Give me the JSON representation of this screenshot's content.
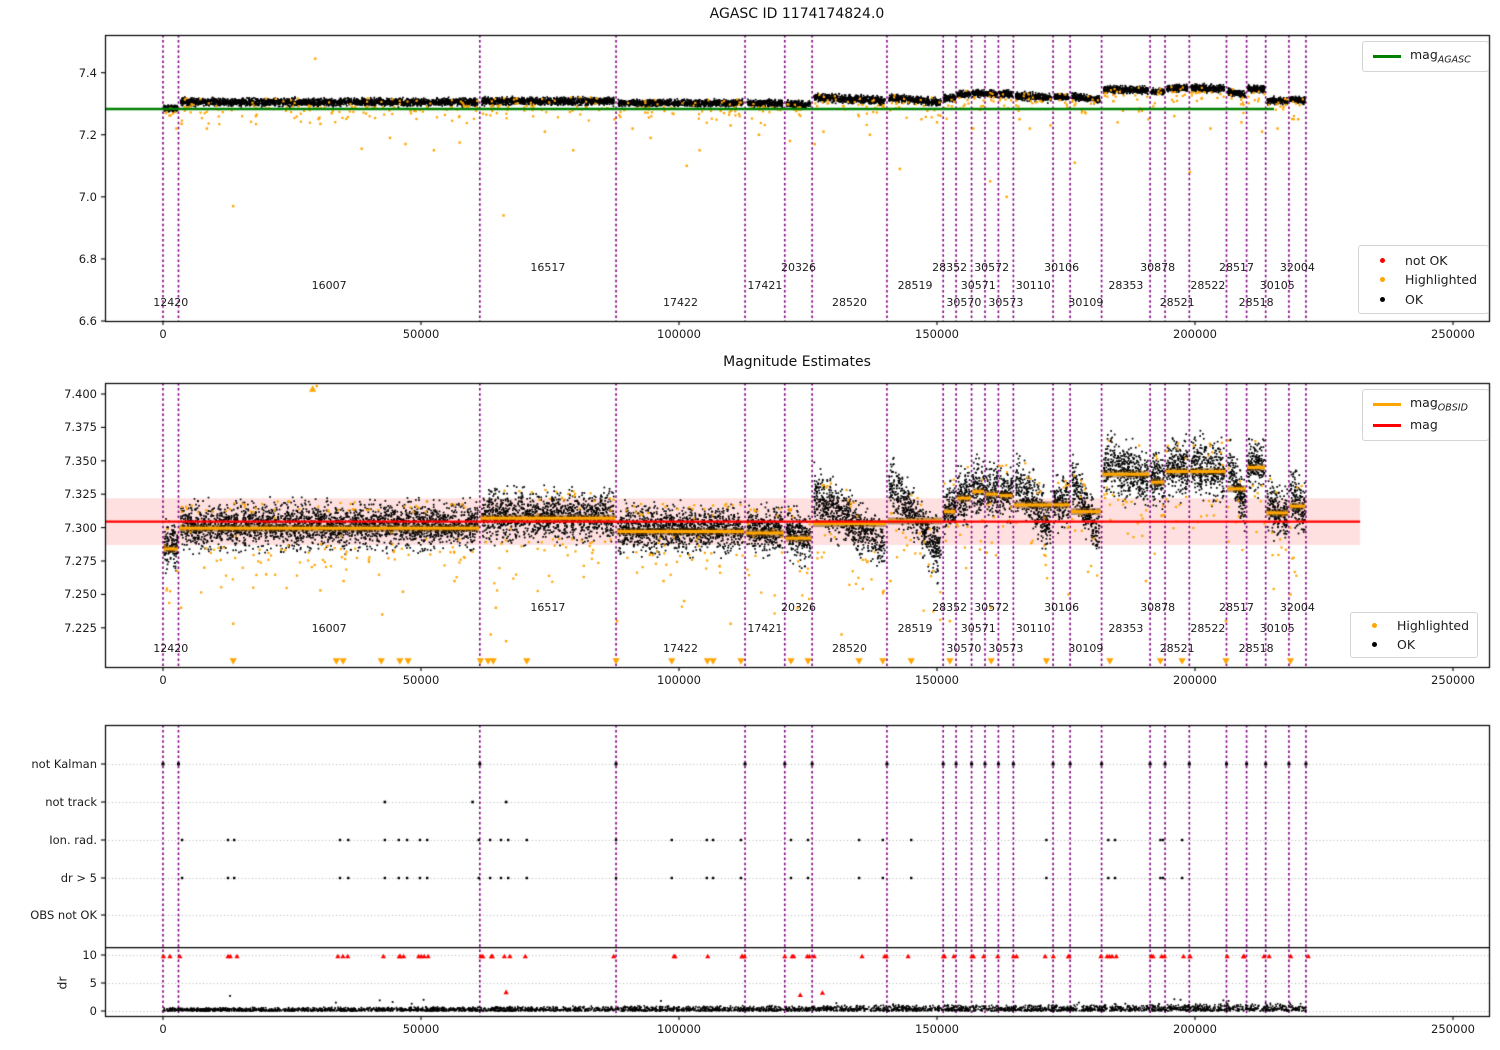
{
  "chart_data": {
    "x_ticks": [
      0,
      50000,
      100000,
      150000,
      200000,
      250000
    ],
    "xlim": [
      -11200,
      257000
    ],
    "boundaries": [
      0,
      3000,
      61400,
      87800,
      112800,
      120500,
      125800,
      140300,
      151200,
      153700,
      156700,
      159300,
      161900,
      164800,
      172500,
      175800,
      181900,
      191300,
      194200,
      198900,
      206100,
      210000,
      213700,
      218200,
      221500
    ],
    "vline_color": "#800080",
    "observations": [
      {
        "obsid": "12420",
        "start": 0,
        "end": 3000,
        "mag_obsid": 7.284,
        "mid_half": 0.016,
        "trend": 0,
        "top_center": 7.284,
        "top_half": 0.01
      },
      {
        "obsid": "16007",
        "start": 3000,
        "end": 61400,
        "mag_obsid": 7.2995,
        "mid_half": 0.0165,
        "trend": 0,
        "top_center": 7.305,
        "top_half": 0.013
      },
      {
        "obsid": "16517",
        "start": 61400,
        "end": 87800,
        "mag_obsid": 7.307,
        "mid_half": 0.0175,
        "trend": 0,
        "top_center": 7.308,
        "top_half": 0.013
      },
      {
        "obsid": "17422",
        "start": 87800,
        "end": 112800,
        "mag_obsid": 7.297,
        "mid_half": 0.017,
        "trend": 0,
        "top_center": 7.302,
        "top_half": 0.012
      },
      {
        "obsid": "17421",
        "start": 112800,
        "end": 120500,
        "mag_obsid": 7.296,
        "mid_half": 0.016,
        "trend": 0,
        "top_center": 7.301,
        "top_half": 0.012
      },
      {
        "obsid": "20326",
        "start": 120500,
        "end": 125800,
        "mag_obsid": 7.292,
        "mid_half": 0.018,
        "trend": -0.008,
        "top_center": 7.298,
        "top_half": 0.012
      },
      {
        "obsid": "28520",
        "start": 125800,
        "end": 140300,
        "mag_obsid": 7.303,
        "mid_half": 0.02,
        "trend": -0.039,
        "top_center": 7.315,
        "top_half": 0.014
      },
      {
        "obsid": "28519",
        "start": 140300,
        "end": 151200,
        "mag_obsid": 7.305,
        "mid_half": 0.02,
        "trend": -0.055,
        "top_center": 7.312,
        "top_half": 0.013
      },
      {
        "obsid": "28352",
        "start": 151200,
        "end": 153700,
        "mag_obsid": 7.312,
        "mid_half": 0.021,
        "trend": 0,
        "top_center": 7.318,
        "top_half": 0.012
      },
      {
        "obsid": "30570",
        "start": 153700,
        "end": 156700,
        "mag_obsid": 7.322,
        "mid_half": 0.02,
        "trend": 0,
        "top_center": 7.33,
        "top_half": 0.012
      },
      {
        "obsid": "30571",
        "start": 156700,
        "end": 159300,
        "mag_obsid": 7.327,
        "mid_half": 0.02,
        "trend": 0,
        "top_center": 7.333,
        "top_half": 0.012
      },
      {
        "obsid": "30572",
        "start": 159300,
        "end": 161900,
        "mag_obsid": 7.325,
        "mid_half": 0.02,
        "trend": 0,
        "top_center": 7.332,
        "top_half": 0.012
      },
      {
        "obsid": "30573",
        "start": 161900,
        "end": 164800,
        "mag_obsid": 7.324,
        "mid_half": 0.02,
        "trend": 0,
        "top_center": 7.331,
        "top_half": 0.012
      },
      {
        "obsid": "30110",
        "start": 164800,
        "end": 172500,
        "mag_obsid": 7.317,
        "mid_half": 0.02,
        "trend": -0.035,
        "top_center": 7.322,
        "top_half": 0.013
      },
      {
        "obsid": "30106",
        "start": 172500,
        "end": 175800,
        "mag_obsid": 7.317,
        "mid_half": 0.018,
        "trend": 0,
        "top_center": 7.322,
        "top_half": 0.012
      },
      {
        "obsid": "30109",
        "start": 175800,
        "end": 181900,
        "mag_obsid": 7.312,
        "mid_half": 0.019,
        "trend": -0.043,
        "top_center": 7.318,
        "top_half": 0.012
      },
      {
        "obsid": "28353",
        "start": 181900,
        "end": 191300,
        "mag_obsid": 7.34,
        "mid_half": 0.021,
        "trend": -0.012,
        "top_center": 7.345,
        "top_half": 0.013
      },
      {
        "obsid": "30878",
        "start": 191300,
        "end": 194200,
        "mag_obsid": 7.334,
        "mid_half": 0.019,
        "trend": 0,
        "top_center": 7.34,
        "top_half": 0.012
      },
      {
        "obsid": "28521",
        "start": 194200,
        "end": 198900,
        "mag_obsid": 7.342,
        "mid_half": 0.02,
        "trend": 0,
        "top_center": 7.35,
        "top_half": 0.012
      },
      {
        "obsid": "28522",
        "start": 198900,
        "end": 206100,
        "mag_obsid": 7.342,
        "mid_half": 0.021,
        "trend": -0.008,
        "top_center": 7.35,
        "top_half": 0.013
      },
      {
        "obsid": "28517",
        "start": 206100,
        "end": 210000,
        "mag_obsid": 7.329,
        "mid_half": 0.018,
        "trend": -0.035,
        "top_center": 7.335,
        "top_half": 0.012
      },
      {
        "obsid": "28518",
        "start": 210000,
        "end": 213700,
        "mag_obsid": 7.345,
        "mid_half": 0.02,
        "trend": 0,
        "top_center": 7.348,
        "top_half": 0.012
      },
      {
        "obsid": "30105",
        "start": 213700,
        "end": 218200,
        "mag_obsid": 7.311,
        "mid_half": 0.019,
        "trend": -0.01,
        "top_center": 7.31,
        "top_half": 0.012
      },
      {
        "obsid": "32004",
        "start": 218200,
        "end": 221500,
        "mag_obsid": 7.316,
        "mid_half": 0.019,
        "trend": -0.015,
        "top_center": 7.312,
        "top_half": 0.012
      }
    ],
    "panel1": {
      "type": "scatter",
      "title": "AGASC ID 1174174824.0",
      "ylim": [
        6.6,
        7.523
      ],
      "y_ticks": [
        7.4,
        7.2,
        7.0,
        6.8,
        6.6
      ],
      "y_tick_decimals": 1,
      "mag_agasc": 7.283,
      "green_color": "#008000",
      "green_line_x": [
        -11200,
        215300
      ],
      "legend_line": {
        "base": "mag",
        "sub": "AGASC"
      },
      "legend_points": [
        {
          "label": "not OK",
          "color": "#ff0000"
        },
        {
          "label": "Highlighted",
          "color": "#ffa500"
        },
        {
          "label": "OK",
          "color": "#000000"
        }
      ],
      "outliers": [
        [
          13600,
          6.97
        ],
        [
          29500,
          7.445
        ],
        [
          66000,
          6.94
        ],
        [
          101500,
          7.1
        ],
        [
          142800,
          7.09
        ],
        [
          160300,
          7.05
        ],
        [
          163500,
          7.0
        ],
        [
          176700,
          7.11
        ],
        [
          199000,
          7.08
        ],
        [
          126300,
          7.17
        ],
        [
          47000,
          7.17
        ],
        [
          44000,
          7.19
        ],
        [
          38500,
          7.155
        ],
        [
          52500,
          7.15
        ],
        [
          57500,
          7.175
        ],
        [
          74000,
          7.21
        ],
        [
          79500,
          7.15
        ],
        [
          94500,
          7.19
        ],
        [
          104000,
          7.15
        ],
        [
          115500,
          7.2
        ],
        [
          121500,
          7.18
        ],
        [
          137000,
          7.2
        ],
        [
          87500,
          7.25
        ],
        [
          91000,
          7.22
        ],
        [
          110000,
          7.23
        ],
        [
          150000,
          7.24
        ],
        [
          168000,
          7.22
        ],
        [
          185000,
          7.24
        ],
        [
          203000,
          7.22
        ],
        [
          213000,
          7.21
        ],
        [
          30500,
          7.235
        ],
        [
          18000,
          7.26
        ],
        [
          8500,
          7.22
        ],
        [
          2600,
          7.22
        ],
        [
          3600,
          7.235
        ],
        [
          128000,
          7.21
        ],
        [
          147000,
          7.25
        ],
        [
          157000,
          7.22
        ],
        [
          166000,
          7.25
        ],
        [
          172000,
          7.23
        ],
        [
          191000,
          7.25
        ],
        [
          196000,
          7.26
        ],
        [
          209000,
          7.24
        ],
        [
          216000,
          7.22
        ],
        [
          220000,
          7.25
        ]
      ]
    },
    "panel2": {
      "type": "scatter",
      "title": "Magnitude Estimates",
      "ylim": [
        7.1956,
        7.4082
      ],
      "y_ticks": [
        7.4,
        7.375,
        7.35,
        7.325,
        7.3,
        7.275,
        7.25,
        7.225
      ],
      "y_tick_decimals": 3,
      "mag": 7.3045,
      "mag_color": "#ff0000",
      "band": [
        7.287,
        7.322
      ],
      "band_color": "rgba(255,0,0,0.12)",
      "red_line_x": [
        -11200,
        232000
      ],
      "obsid_line_color": "#ffa500",
      "legend_lines": [
        {
          "base": "mag",
          "sub": "OBSID",
          "color": "#ffa500"
        },
        {
          "base": "mag",
          "sub": "",
          "color": "#ff0000"
        }
      ],
      "legend_points": [
        {
          "label": "Highlighted",
          "color": "#ffa500"
        },
        {
          "label": "OK",
          "color": "#000000"
        }
      ],
      "outliers": [
        [
          29800,
          7.406
        ],
        [
          3500,
          7.24
        ],
        [
          13600,
          7.228
        ],
        [
          30500,
          7.253
        ],
        [
          42500,
          7.235
        ],
        [
          56500,
          7.26
        ],
        [
          63500,
          7.22
        ],
        [
          64500,
          7.24
        ],
        [
          88000,
          7.23
        ],
        [
          101000,
          7.245
        ],
        [
          110000,
          7.228
        ],
        [
          123000,
          7.24
        ],
        [
          131500,
          7.22
        ],
        [
          141000,
          7.26
        ],
        [
          152500,
          7.23
        ],
        [
          160500,
          7.24
        ],
        [
          175500,
          7.25
        ],
        [
          190500,
          7.26
        ],
        [
          206000,
          7.23
        ],
        [
          218500,
          7.25
        ],
        [
          66500,
          7.215
        ],
        [
          97000,
          7.26
        ],
        [
          46500,
          7.252
        ],
        [
          35000,
          7.26
        ],
        [
          20000,
          7.265
        ],
        [
          8000,
          7.27
        ]
      ],
      "clipped_low_x": [
        13600,
        33600,
        34900,
        42300,
        45900,
        47500,
        61500,
        63000,
        64000,
        70500,
        87800,
        98600,
        105500,
        106600,
        112000,
        121700,
        125000,
        134900,
        139500,
        145000,
        152500,
        160500,
        171200,
        183500,
        193300,
        197500,
        206000,
        218500
      ],
      "clipped_high_x": [
        29000
      ]
    },
    "panel3": {
      "type": "scatter",
      "categories": [
        "not Kalman",
        "not track",
        "Ion. rad.",
        "dr > 5",
        "OBS not OK"
      ],
      "dr_label": "dr",
      "dr_ticks": [
        10,
        5,
        0
      ],
      "dr_hline": 11.3,
      "flags": {
        "not_track": [
          43000,
          60000,
          66500
        ],
        "ion_rad": [
          3700,
          12600,
          13800,
          34300,
          35900,
          43000,
          45700,
          47300,
          49800,
          51200,
          61200,
          63400,
          65500,
          66900,
          70500,
          87800,
          98600,
          105400,
          106600,
          112000,
          121700,
          125000,
          134900,
          139500,
          145000,
          171200,
          183200,
          184500,
          193300,
          193800,
          197500
        ],
        "dr_gt5": [
          3700,
          12600,
          13800,
          34300,
          35900,
          43000,
          45700,
          47300,
          49800,
          51200,
          61200,
          63400,
          65500,
          66900,
          70500,
          87800,
          98600,
          105400,
          106600,
          112000,
          121700,
          125000,
          134900,
          139500,
          145000,
          171200,
          183200,
          184500,
          193300,
          193800,
          197500
        ],
        "obs_not_ok": []
      },
      "dr_red_clip_x": [
        0,
        1500,
        3000,
        12600,
        13800,
        34300,
        35900,
        43000,
        45700,
        47300,
        49800,
        51200,
        61400,
        63400,
        65500,
        66900,
        70500,
        87800,
        98600,
        105400,
        112000,
        112800,
        120500,
        121700,
        125000,
        125800,
        134900,
        139500,
        140300,
        145000,
        151200,
        153700,
        156700,
        159300,
        161900,
        164800,
        171200,
        172500,
        175800,
        181900,
        183200,
        184500,
        191300,
        193300,
        194200,
        197500,
        198900,
        206100,
        210000,
        213700,
        218200,
        221500
      ],
      "dr_red_low": [
        [
          66500,
          3.4
        ],
        [
          123500,
          2.9
        ],
        [
          127800,
          3.3
        ]
      ],
      "dr_black_spikes": [
        [
          13000,
          2.7
        ],
        [
          33500,
          1.5
        ],
        [
          42000,
          1.9
        ],
        [
          44500,
          1.6
        ],
        [
          48200,
          1.3
        ],
        [
          50500,
          2.0
        ],
        [
          96500,
          1.8
        ],
        [
          130500,
          1.4
        ],
        [
          141500,
          1.2
        ],
        [
          177500,
          1.5
        ],
        [
          186500,
          1.3
        ],
        [
          196000,
          2.1
        ],
        [
          197200,
          2.0
        ],
        [
          205500,
          1.9
        ],
        [
          206500,
          1.8
        ]
      ]
    }
  }
}
